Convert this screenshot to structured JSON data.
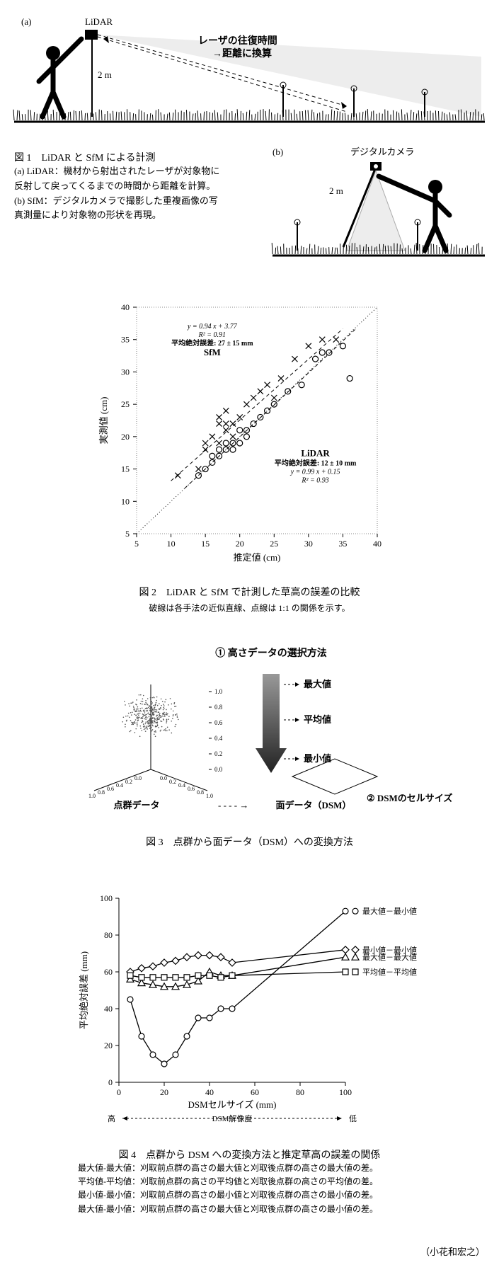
{
  "fig1": {
    "label_a": "(a)",
    "label_b": "(b)",
    "lidar_label": "LiDAR",
    "camera_label": "デジタルカメラ",
    "height_label": "2 m",
    "laser_text_1": "レーザの往復時間",
    "laser_text_2": "→距離に換算",
    "title": "図 1　LiDAR と SfM による計測",
    "caption_a": "(a) LiDAR：機材から射出されたレーザが対象物に",
    "caption_a2": "反射して戻ってくるまでの時間から距離を計算。",
    "caption_b": "(b) SfM：デジタルカメラで撮影した重複画像の写",
    "caption_b2": "真測量により対象物の形状を再現。"
  },
  "fig2": {
    "type": "scatter",
    "xlabel": "推定値 (cm)",
    "ylabel": "実測値 (cm)",
    "xlim": [
      5,
      40
    ],
    "ylim": [
      5,
      40
    ],
    "ticks": [
      5,
      10,
      15,
      20,
      25,
      30,
      35,
      40
    ],
    "eq_sfm_1": "y = 0.94 x + 3.77",
    "eq_sfm_2": "R² = 0.91",
    "eq_sfm_3": "平均絶対誤差: 27 ± 15 mm",
    "sfm_label": "SfM",
    "lidar_label": "LiDAR",
    "eq_lidar_1": "平均絶対誤差: 12 ± 10 mm",
    "eq_lidar_2": "y = 0.99 x + 0.15",
    "eq_lidar_3": "R² = 0.93",
    "sfm_points": [
      [
        11,
        14
      ],
      [
        14,
        15
      ],
      [
        15,
        18
      ],
      [
        15,
        19
      ],
      [
        16,
        20
      ],
      [
        17,
        22
      ],
      [
        17,
        19
      ],
      [
        17,
        23
      ],
      [
        18,
        21
      ],
      [
        18,
        22
      ],
      [
        18,
        24
      ],
      [
        19,
        20
      ],
      [
        19,
        22
      ],
      [
        20,
        23
      ],
      [
        21,
        25
      ],
      [
        22,
        26
      ],
      [
        23,
        27
      ],
      [
        24,
        28
      ],
      [
        25,
        26
      ],
      [
        26,
        29
      ],
      [
        28,
        32
      ],
      [
        30,
        34
      ],
      [
        32,
        35
      ],
      [
        34,
        35
      ]
    ],
    "lidar_points": [
      [
        14,
        14
      ],
      [
        15,
        15
      ],
      [
        16,
        16
      ],
      [
        16,
        17
      ],
      [
        17,
        17
      ],
      [
        17,
        18
      ],
      [
        18,
        18
      ],
      [
        18,
        19
      ],
      [
        19,
        18
      ],
      [
        19,
        19
      ],
      [
        20,
        19
      ],
      [
        20,
        21
      ],
      [
        21,
        21
      ],
      [
        21,
        20
      ],
      [
        22,
        22
      ],
      [
        23,
        23
      ],
      [
        24,
        24
      ],
      [
        25,
        25
      ],
      [
        27,
        27
      ],
      [
        29,
        28
      ],
      [
        31,
        32
      ],
      [
        32,
        33
      ],
      [
        33,
        33
      ],
      [
        35,
        34
      ],
      [
        36,
        29
      ]
    ],
    "marker_color": "#000",
    "bg": "#ffffff",
    "grid_color": "#cccccc",
    "title": "図 2　LiDAR と SfM で計測した草高の誤差の比較",
    "subtitle": "破線は各手法の近似直線、点線は 1:1 の関係を示す。"
  },
  "fig3": {
    "title_top": "① 高さデータの選択方法",
    "max_label": "最大値",
    "mean_label": "平均値",
    "min_label": "最小値",
    "cell_label": "② DSMのセルサイズ",
    "pointcloud_label": "点群データ",
    "surface_label": "面データ（DSM）",
    "arrow_sep": " - - - - →",
    "axis_ticks": [
      "0.0",
      "0.2",
      "0.4",
      "0.6",
      "0.8",
      "1.0"
    ],
    "title": "図 3　点群から面データ（DSM）への変換方法"
  },
  "fig4": {
    "type": "line",
    "xlabel": "DSMセルサイズ (mm)",
    "ylabel": "平均絶対誤差 (mm)",
    "xlim": [
      0,
      100
    ],
    "ylim": [
      0,
      100
    ],
    "xticks": [
      0,
      20,
      40,
      60,
      80,
      100
    ],
    "yticks": [
      0,
      20,
      40,
      60,
      80,
      100
    ],
    "resolution_label": "DSM解像度",
    "resolution_high": "高",
    "resolution_low": "低",
    "series": [
      {
        "name": "最大値－最小値",
        "marker": "circle",
        "data": [
          [
            5,
            45
          ],
          [
            10,
            25
          ],
          [
            15,
            15
          ],
          [
            20,
            10
          ],
          [
            25,
            15
          ],
          [
            30,
            25
          ],
          [
            35,
            35
          ],
          [
            40,
            35
          ],
          [
            45,
            40
          ],
          [
            50,
            40
          ],
          [
            100,
            93
          ]
        ]
      },
      {
        "name": "最小値－最小値",
        "marker": "diamond",
        "data": [
          [
            5,
            60
          ],
          [
            10,
            62
          ],
          [
            15,
            63
          ],
          [
            20,
            65
          ],
          [
            25,
            66
          ],
          [
            30,
            68
          ],
          [
            35,
            69
          ],
          [
            40,
            69
          ],
          [
            45,
            68
          ],
          [
            50,
            65
          ],
          [
            100,
            72
          ]
        ]
      },
      {
        "name": "最大値－最大値",
        "marker": "triangle",
        "data": [
          [
            5,
            56
          ],
          [
            10,
            54
          ],
          [
            15,
            53
          ],
          [
            20,
            52
          ],
          [
            25,
            52
          ],
          [
            30,
            53
          ],
          [
            35,
            55
          ],
          [
            40,
            60
          ],
          [
            45,
            58
          ],
          [
            50,
            58
          ],
          [
            100,
            68
          ]
        ]
      },
      {
        "name": "平均値－平均値",
        "marker": "square",
        "data": [
          [
            5,
            58
          ],
          [
            10,
            57
          ],
          [
            15,
            57
          ],
          [
            20,
            57
          ],
          [
            25,
            57
          ],
          [
            30,
            57
          ],
          [
            35,
            58
          ],
          [
            40,
            58
          ],
          [
            45,
            57
          ],
          [
            50,
            58
          ],
          [
            100,
            60
          ]
        ]
      }
    ],
    "line_color": "#000",
    "title": "図 4　点群から DSM への変換方法と推定草高の誤差の関係",
    "explain": [
      "最大値-最大値：刈取前点群の高さの最大値と刈取後点群の高さの最大値の差。",
      "平均値-平均値：刈取前点群の高さの平均値と刈取後点群の高さの平均値の差。",
      "最小値-最小値：刈取前点群の高さの最小値と刈取後点群の高さの最小値の差。",
      "最大値-最小値：刈取前点群の高さの最大値と刈取後点群の高さの最小値の差。"
    ]
  },
  "author": "（小花和宏之）"
}
